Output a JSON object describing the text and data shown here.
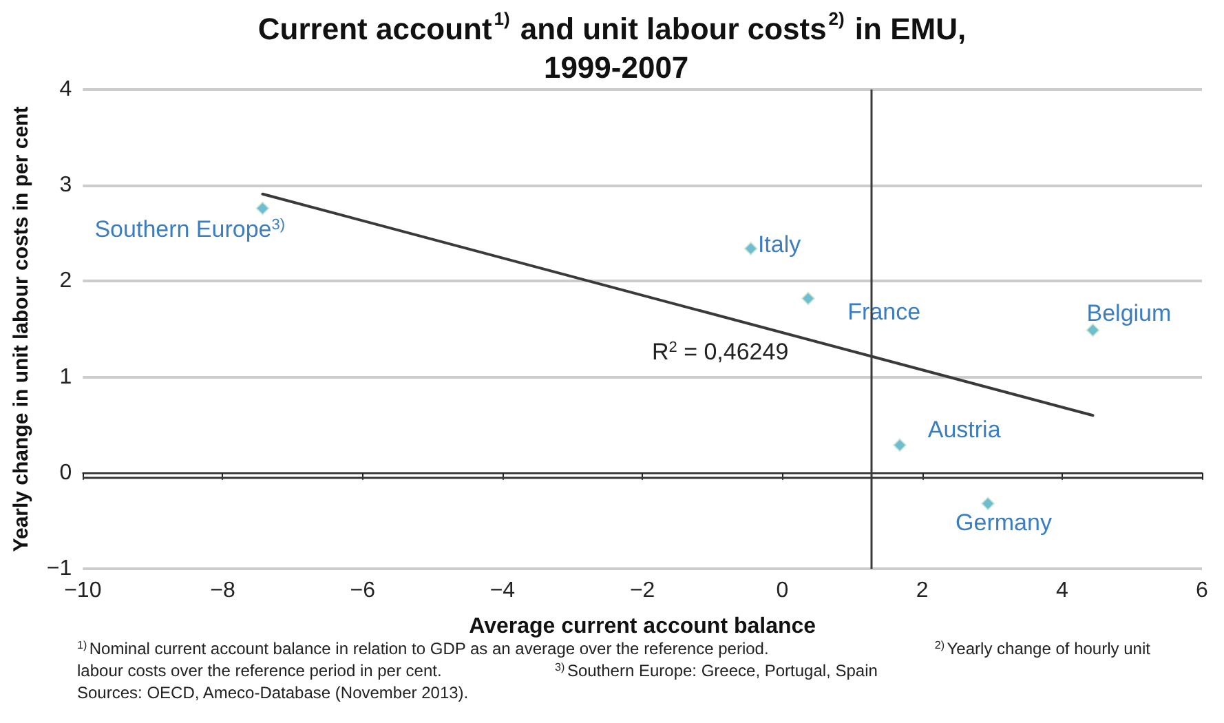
{
  "chart_data": {
    "type": "scatter",
    "title": "Current account$^{1)}$ and unit labour costs$^{2)}$ in EMU, 1999-2007",
    "xlabel": "Average current account balance",
    "ylabel": "Yearly change in unit labour costs in per cent",
    "series": [
      {
        "color": "#4bacc6",
        "marker": "diamond",
        "x": [
          -7.43,
          -0.45,
          0.37,
          4.44,
          1.68,
          2.94
        ],
        "values": [
          2.76,
          2.34,
          1.82,
          1.49,
          0.29,
          -0.32
        ]
      },
      {
        "type": "line",
        "color": "#3a3a3a",
        "x": [
          -7.43,
          4.44
        ],
        "values": [
          2.91,
          0.6
        ]
      }
    ],
    "annotations": [
      {
        "text": "Southern Europe$^{3)}$",
        "x": -7.43,
        "y": 2.76
      },
      {
        "text": "Italy",
        "x": -0.45,
        "y": 2.34
      },
      {
        "text": "France",
        "x": 0.37,
        "y": 1.82
      },
      {
        "text": "Belgium",
        "x": 4.44,
        "y": 1.49
      },
      {
        "text": "Austria",
        "x": 1.68,
        "y": 0.29
      },
      {
        "text": "Germany",
        "x": 2.94,
        "y": -0.32
      },
      {
        "text": "R$^{2}$ = 0,46249",
        "x": -0.82,
        "y": 1.62
      },
      "$^{1)}$Nominal current account balance in relation to GDP as an average over the reference period. $^{2)}$Yearly change of hourly unit labour costs over the reference period in per cent. $^{3)}$Southern Europe: Greece, Portugal, Spain",
      "Sources: OECD, Ameco-Database (November 2013)."
    ],
    "ref_lines": [
      {
        "axis": "x",
        "value": 1.27,
        "color": "#3a3a3a"
      },
      {
        "axis": "y",
        "value": -0.05,
        "color": "#3a3a3a"
      }
    ],
    "xlim": [
      -10,
      6
    ],
    "xticks": [
      {
        "value": -10,
        "label": "−10"
      },
      {
        "value": -8,
        "label": "−8"
      },
      {
        "value": -6,
        "label": "−6"
      },
      {
        "value": -4,
        "label": "−4"
      },
      {
        "value": -2,
        "label": "−2"
      },
      0,
      2,
      4,
      6
    ],
    "ylim": [
      -1,
      4
    ],
    "yticks": [
      {
        "value": -1,
        "label": "−1"
      },
      0,
      1,
      2,
      3,
      4
    ],
    "grid": "y",
    "legend": false
  }
}
